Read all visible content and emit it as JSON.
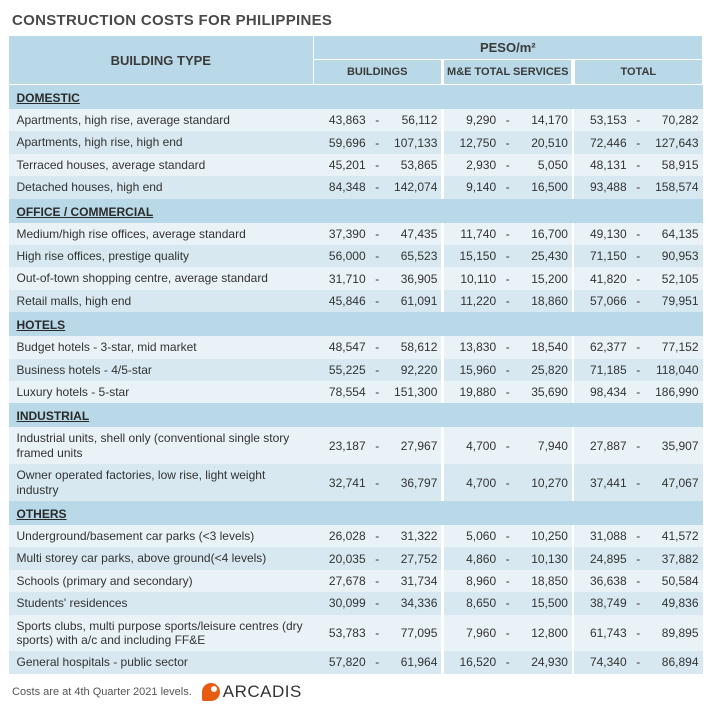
{
  "title": "CONSTRUCTION COSTS FOR PHILIPPINES",
  "headers": {
    "building_type": "BUILDING TYPE",
    "unit": "PESO/m²",
    "buildings": "BUILDINGS",
    "me": "M&E TOTAL SERVICES",
    "total": "TOTAL"
  },
  "colors": {
    "header_bg": "#b9d9e8",
    "row_bg": "#e9f2f7",
    "row_alt_bg": "#d7e8f0",
    "title_color": "#4a4a4a",
    "text_color": "#333333",
    "logo_orange": "#e85c12"
  },
  "sections": [
    {
      "name": "DOMESTIC",
      "rows": [
        {
          "label": "Apartments, high rise, average standard",
          "b_lo": "43,863",
          "b_hi": "56,112",
          "m_lo": "9,290",
          "m_hi": "14,170",
          "t_lo": "53,153",
          "t_hi": "70,282"
        },
        {
          "label": "Apartments, high rise, high end",
          "b_lo": "59,696",
          "b_hi": "107,133",
          "m_lo": "12,750",
          "m_hi": "20,510",
          "t_lo": "72,446",
          "t_hi": "127,643"
        },
        {
          "label": "Terraced houses, average standard",
          "b_lo": "45,201",
          "b_hi": "53,865",
          "m_lo": "2,930",
          "m_hi": "5,050",
          "t_lo": "48,131",
          "t_hi": "58,915"
        },
        {
          "label": "Detached houses, high end",
          "b_lo": "84,348",
          "b_hi": "142,074",
          "m_lo": "9,140",
          "m_hi": "16,500",
          "t_lo": "93,488",
          "t_hi": "158,574"
        }
      ]
    },
    {
      "name": "OFFICE / COMMERCIAL",
      "rows": [
        {
          "label": "Medium/high rise offices, average standard",
          "b_lo": "37,390",
          "b_hi": "47,435",
          "m_lo": "11,740",
          "m_hi": "16,700",
          "t_lo": "49,130",
          "t_hi": "64,135"
        },
        {
          "label": "High rise offices, prestige quality",
          "b_lo": "56,000",
          "b_hi": "65,523",
          "m_lo": "15,150",
          "m_hi": "25,430",
          "t_lo": "71,150",
          "t_hi": "90,953"
        },
        {
          "label": "Out-of-town shopping centre, average standard",
          "b_lo": "31,710",
          "b_hi": "36,905",
          "m_lo": "10,110",
          "m_hi": "15,200",
          "t_lo": "41,820",
          "t_hi": "52,105"
        },
        {
          "label": "Retail malls, high end",
          "b_lo": "45,846",
          "b_hi": "61,091",
          "m_lo": "11,220",
          "m_hi": "18,860",
          "t_lo": "57,066",
          "t_hi": "79,951"
        }
      ]
    },
    {
      "name": "HOTELS",
      "rows": [
        {
          "label": "Budget hotels - 3-star, mid market",
          "b_lo": "48,547",
          "b_hi": "58,612",
          "m_lo": "13,830",
          "m_hi": "18,540",
          "t_lo": "62,377",
          "t_hi": "77,152"
        },
        {
          "label": "Business hotels - 4/5-star",
          "b_lo": "55,225",
          "b_hi": "92,220",
          "m_lo": "15,960",
          "m_hi": "25,820",
          "t_lo": "71,185",
          "t_hi": "118,040"
        },
        {
          "label": "Luxury hotels - 5-star",
          "b_lo": "78,554",
          "b_hi": "151,300",
          "m_lo": "19,880",
          "m_hi": "35,690",
          "t_lo": "98,434",
          "t_hi": "186,990"
        }
      ]
    },
    {
      "name": "INDUSTRIAL",
      "rows": [
        {
          "label": "Industrial units, shell only (conventional single story framed units",
          "b_lo": "23,187",
          "b_hi": "27,967",
          "m_lo": "4,700",
          "m_hi": "7,940",
          "t_lo": "27,887",
          "t_hi": "35,907"
        },
        {
          "label": "Owner operated factories, low rise, light weight industry",
          "b_lo": "32,741",
          "b_hi": "36,797",
          "m_lo": "4,700",
          "m_hi": "10,270",
          "t_lo": "37,441",
          "t_hi": "47,067"
        }
      ]
    },
    {
      "name": "OTHERS",
      "rows": [
        {
          "label": "Underground/basement car parks (<3 levels)",
          "b_lo": "26,028",
          "b_hi": "31,322",
          "m_lo": "5,060",
          "m_hi": "10,250",
          "t_lo": "31,088",
          "t_hi": "41,572"
        },
        {
          "label": "Multi storey car parks, above ground(<4 levels)",
          "b_lo": "20,035",
          "b_hi": "27,752",
          "m_lo": "4,860",
          "m_hi": "10,130",
          "t_lo": "24,895",
          "t_hi": "37,882"
        },
        {
          "label": "Schools (primary and secondary)",
          "b_lo": "27,678",
          "b_hi": "31,734",
          "m_lo": "8,960",
          "m_hi": "18,850",
          "t_lo": "36,638",
          "t_hi": "50,584"
        },
        {
          "label": "Students' residences",
          "b_lo": "30,099",
          "b_hi": "34,336",
          "m_lo": "8,650",
          "m_hi": "15,500",
          "t_lo": "38,749",
          "t_hi": "49,836"
        },
        {
          "label": "Sports clubs, multi purpose sports/leisure centres (dry sports) with a/c and including FF&E",
          "b_lo": "53,783",
          "b_hi": "77,095",
          "m_lo": "7,960",
          "m_hi": "12,800",
          "t_lo": "61,743",
          "t_hi": "89,895"
        },
        {
          "label": "General hospitals - public sector",
          "b_lo": "57,820",
          "b_hi": "61,964",
          "m_lo": "16,520",
          "m_hi": "24,930",
          "t_lo": "74,340",
          "t_hi": "86,894"
        }
      ]
    }
  ],
  "footer_note": "Costs are at 4th Quarter 2021 levels.",
  "logo_text": "ARCADIS"
}
